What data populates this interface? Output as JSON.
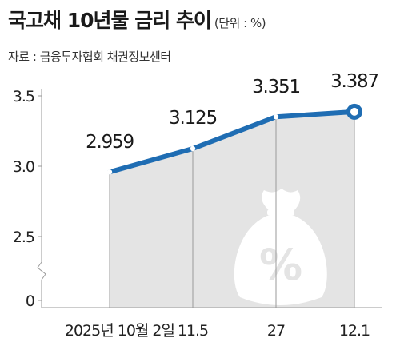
{
  "header": {
    "title": "국고채 10년물 금리 추이",
    "unit": "(단위 : %)",
    "source": "자료 : 금융투자협회 채권정보센터"
  },
  "colors": {
    "line": "#1f6db3",
    "area": "#e4e4e4",
    "grid": "#9a9a9a",
    "marker_fill": "#ffffff"
  },
  "icons": [
    "money-bag-percent-icon"
  ],
  "chart_data": {
    "type": "area",
    "categories": [
      "2025년 10월 2일",
      "11.5",
      "27",
      "12.1"
    ],
    "values": [
      2.959,
      3.125,
      3.351,
      3.387
    ],
    "value_labels": [
      "2.959",
      "3.125",
      "3.351",
      "3.387"
    ],
    "y_ticks": [
      "3.5",
      "3.0",
      "2.5",
      "0"
    ],
    "y_axis_break": true,
    "ylim": [
      2.1,
      3.5
    ],
    "grid": false,
    "legend": "none",
    "highlight_last_point": true
  }
}
